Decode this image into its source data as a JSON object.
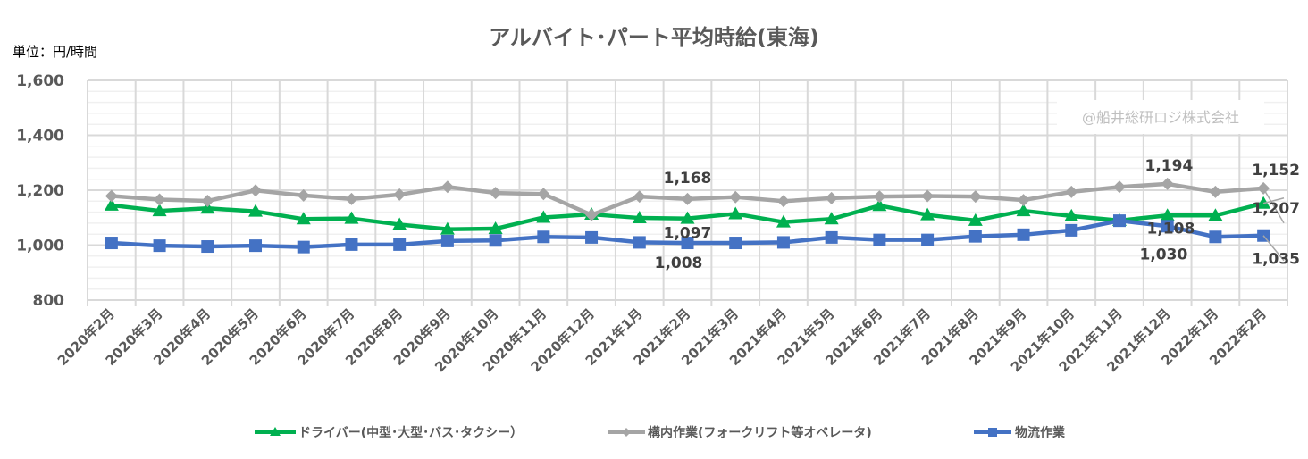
{
  "chart_data": {
    "type": "line",
    "title": "アルバイト･パート平均時給(東海)",
    "unit_label": "単位：円/時間",
    "watermark": "@船井総研ロジ株式会社",
    "ylim": [
      800,
      1600
    ],
    "yticks": [
      800,
      1000,
      1200,
      1400,
      1600
    ],
    "ytick_labels": [
      "800",
      "1,000",
      "1,200",
      "1,400",
      "1,600"
    ],
    "grid": true,
    "legend_position": "bottom",
    "categories": [
      "2020年2月",
      "2020年3月",
      "2020年4月",
      "2020年5月",
      "2020年6月",
      "2020年7月",
      "2020年8月",
      "2020年9月",
      "2020年10月",
      "2020年11月",
      "2020年12月",
      "2021年1月",
      "2021年2月",
      "2021年3月",
      "2021年4月",
      "2021年5月",
      "2021年6月",
      "2021年7月",
      "2021年8月",
      "2021年9月",
      "2021年10月",
      "2021年11月",
      "2021年12月",
      "2022年1月",
      "2022年2月"
    ],
    "series": [
      {
        "name": "ドライバー(中型･大型･バス･タクシー）",
        "color": "#00b050",
        "marker": "triangle",
        "values": [
          1145,
          1125,
          1134,
          1123,
          1095,
          1097,
          1075,
          1058,
          1060,
          1101,
          1112,
          1099,
          1097,
          1114,
          1084,
          1095,
          1144,
          1110,
          1090,
          1125,
          1106,
          1090,
          1108,
          1108,
          1152
        ]
      },
      {
        "name": "構内作業(フォークリフト等オペレータ)",
        "color": "#a5a5a5",
        "marker": "diamond",
        "values": [
          1179,
          1166,
          1161,
          1199,
          1181,
          1168,
          1184,
          1212,
          1190,
          1186,
          1110,
          1177,
          1168,
          1175,
          1160,
          1171,
          1177,
          1179,
          1177,
          1164,
          1194,
          1212,
          1223,
          1194,
          1207
        ]
      },
      {
        "name": "物流作業",
        "color": "#4472c4",
        "marker": "square",
        "values": [
          1008,
          998,
          995,
          998,
          993,
          1002,
          1002,
          1015,
          1017,
          1030,
          1028,
          1010,
          1008,
          1008,
          1010,
          1028,
          1019,
          1019,
          1032,
          1038,
          1054,
          1089,
          1069,
          1030,
          1035
        ]
      }
    ],
    "data_labels": [
      {
        "series": 1,
        "index": 12,
        "text": "1,168"
      },
      {
        "series": 0,
        "index": 12,
        "text": "1,097"
      },
      {
        "series": 2,
        "index": 12,
        "text": "1,008"
      },
      {
        "series": 1,
        "index": 23,
        "text": "1,194"
      },
      {
        "series": 0,
        "index": 24,
        "text": "1,152"
      },
      {
        "series": 0,
        "index": 23,
        "text": "1,108"
      },
      {
        "series": 1,
        "index": 24,
        "text": "1,207"
      },
      {
        "series": 2,
        "index": 23,
        "text": "1,030"
      },
      {
        "series": 2,
        "index": 24,
        "text": "1,035"
      }
    ]
  }
}
